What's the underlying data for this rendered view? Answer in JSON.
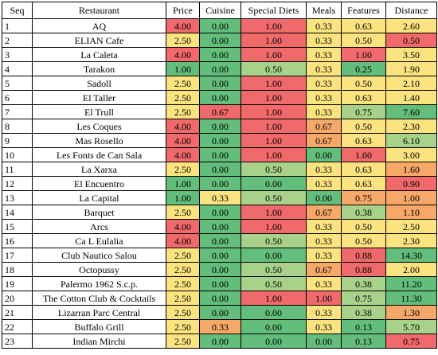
{
  "headers": [
    "Seq",
    "Restaurant",
    "Price",
    "Cuisine",
    "Special Diets",
    "Meals",
    "Features",
    "Distance"
  ],
  "colors": {
    "red": "#f0696b",
    "orange": "#f6a869",
    "yellow": "#fbe480",
    "light_green": "#a8d28a",
    "green": "#63be7b"
  },
  "rows": [
    {
      "seq": "1",
      "name": "AQ",
      "price": "4.00",
      "cuisine": "0.00",
      "diets": "1.00",
      "meals": "0.33",
      "features": "0.63",
      "distance": "2.60",
      "c": [
        "red",
        "green",
        "red",
        "yellow",
        "yellow",
        "yellow"
      ]
    },
    {
      "seq": "2",
      "name": "ELIAN Cafe",
      "price": "2.50",
      "cuisine": "0.00",
      "diets": "1.00",
      "meals": "0.33",
      "features": "0.50",
      "distance": "0.50",
      "c": [
        "yellow",
        "green",
        "red",
        "yellow",
        "yellow",
        "red"
      ]
    },
    {
      "seq": "3",
      "name": "La Caleta",
      "price": "4.00",
      "cuisine": "0.00",
      "diets": "1.00",
      "meals": "0.33",
      "features": "1.00",
      "distance": "3.50",
      "c": [
        "red",
        "green",
        "red",
        "yellow",
        "red",
        "yellow"
      ]
    },
    {
      "seq": "4",
      "name": "Tarakon",
      "price": "1.00",
      "cuisine": "0.00",
      "diets": "0.50",
      "meals": "0.33",
      "features": "0.25",
      "distance": "1.90",
      "c": [
        "green",
        "green",
        "light_green",
        "yellow",
        "green",
        "yellow"
      ]
    },
    {
      "seq": "5",
      "name": "Sadoll",
      "price": "2.50",
      "cuisine": "0.00",
      "diets": "1.00",
      "meals": "0.33",
      "features": "0.50",
      "distance": "2.10",
      "c": [
        "yellow",
        "green",
        "red",
        "yellow",
        "yellow",
        "yellow"
      ]
    },
    {
      "seq": "6",
      "name": "El Taller",
      "price": "2.50",
      "cuisine": "0.00",
      "diets": "1.00",
      "meals": "0.33",
      "features": "0.63",
      "distance": "1.40",
      "c": [
        "yellow",
        "green",
        "red",
        "yellow",
        "yellow",
        "yellow"
      ]
    },
    {
      "seq": "7",
      "name": "El Trull",
      "price": "2.50",
      "cuisine": "0.67",
      "diets": "1.00",
      "meals": "0.33",
      "features": "0.75",
      "distance": "7.60",
      "c": [
        "yellow",
        "red",
        "red",
        "yellow",
        "light_green",
        "green"
      ]
    },
    {
      "seq": "8",
      "name": "Les Coques",
      "price": "4.00",
      "cuisine": "0.00",
      "diets": "1.00",
      "meals": "0.67",
      "features": "0.50",
      "distance": "2.30",
      "c": [
        "red",
        "green",
        "red",
        "orange",
        "yellow",
        "yellow"
      ]
    },
    {
      "seq": "9",
      "name": "Mas Rosello",
      "price": "4.00",
      "cuisine": "0.00",
      "diets": "1.00",
      "meals": "0.67",
      "features": "0.63",
      "distance": "6.10",
      "c": [
        "red",
        "green",
        "red",
        "orange",
        "yellow",
        "light_green"
      ]
    },
    {
      "seq": "10",
      "name": "Les Fonts de Can Sala",
      "price": "4.00",
      "cuisine": "0.00",
      "diets": "1.00",
      "meals": "0.00",
      "features": "1.00",
      "distance": "3.00",
      "c": [
        "red",
        "green",
        "red",
        "green",
        "red",
        "yellow"
      ]
    },
    {
      "seq": "11",
      "name": "La Xarxa",
      "price": "2.50",
      "cuisine": "0.00",
      "diets": "0.50",
      "meals": "0.33",
      "features": "0.63",
      "distance": "1.60",
      "c": [
        "yellow",
        "green",
        "light_green",
        "yellow",
        "yellow",
        "orange"
      ]
    },
    {
      "seq": "12",
      "name": "El Encuentro",
      "price": "1.00",
      "cuisine": "0.00",
      "diets": "0.00",
      "meals": "0.33",
      "features": "0.63",
      "distance": "0.90",
      "c": [
        "green",
        "green",
        "green",
        "yellow",
        "yellow",
        "red"
      ]
    },
    {
      "seq": "13",
      "name": "La Capital",
      "price": "1.00",
      "cuisine": "0.33",
      "diets": "0.50",
      "meals": "0.00",
      "features": "0.75",
      "distance": "1.00",
      "c": [
        "green",
        "yellow",
        "light_green",
        "green",
        "orange",
        "orange"
      ]
    },
    {
      "seq": "14",
      "name": "Barquet",
      "price": "2.50",
      "cuisine": "0.00",
      "diets": "1.00",
      "meals": "0.67",
      "features": "0.38",
      "distance": "1.10",
      "c": [
        "yellow",
        "green",
        "red",
        "orange",
        "light_green",
        "orange"
      ]
    },
    {
      "seq": "15",
      "name": "Arcs",
      "price": "4.00",
      "cuisine": "0.00",
      "diets": "1.00",
      "meals": "0.33",
      "features": "0.50",
      "distance": "2.50",
      "c": [
        "red",
        "green",
        "red",
        "yellow",
        "yellow",
        "yellow"
      ]
    },
    {
      "seq": "16",
      "name": "Ca L Eulalia",
      "price": "4.00",
      "cuisine": "0.00",
      "diets": "0.50",
      "meals": "0.33",
      "features": "0.50",
      "distance": "2.30",
      "c": [
        "red",
        "green",
        "light_green",
        "yellow",
        "yellow",
        "yellow"
      ]
    },
    {
      "seq": "17",
      "name": "Club Nautico Salou",
      "price": "2.50",
      "cuisine": "0.00",
      "diets": "0.00",
      "meals": "0.33",
      "features": "0.88",
      "distance": "14.30",
      "c": [
        "yellow",
        "green",
        "green",
        "yellow",
        "red",
        "green"
      ]
    },
    {
      "seq": "18",
      "name": "Octopussy",
      "price": "2.50",
      "cuisine": "0.00",
      "diets": "0.50",
      "meals": "0.67",
      "features": "0.88",
      "distance": "2.00",
      "c": [
        "yellow",
        "green",
        "light_green",
        "orange",
        "red",
        "yellow"
      ]
    },
    {
      "seq": "19",
      "name": "Palermo 1962 S.c.p.",
      "price": "2.50",
      "cuisine": "0.00",
      "diets": "0.50",
      "meals": "0.33",
      "features": "0.38",
      "distance": "11.20",
      "c": [
        "yellow",
        "green",
        "light_green",
        "yellow",
        "light_green",
        "green"
      ]
    },
    {
      "seq": "20",
      "name": "The Cotton Club & Cocktails",
      "price": "2.50",
      "cuisine": "0.00",
      "diets": "1.00",
      "meals": "1.00",
      "features": "0.75",
      "distance": "11.30",
      "c": [
        "yellow",
        "green",
        "red",
        "red",
        "light_green",
        "green"
      ]
    },
    {
      "seq": "21",
      "name": "Lizarran Parc Central",
      "price": "2.50",
      "cuisine": "0.00",
      "diets": "0.00",
      "meals": "0.33",
      "features": "0.38",
      "distance": "1.30",
      "c": [
        "yellow",
        "green",
        "green",
        "yellow",
        "light_green",
        "orange"
      ]
    },
    {
      "seq": "22",
      "name": "Buffalo Grill",
      "price": "2.50",
      "cuisine": "0.33",
      "diets": "0.00",
      "meals": "0.33",
      "features": "0.13",
      "distance": "5.70",
      "c": [
        "yellow",
        "orange",
        "green",
        "yellow",
        "green",
        "light_green"
      ]
    },
    {
      "seq": "23",
      "name": "Indian Mirchi",
      "price": "2.50",
      "cuisine": "0.00",
      "diets": "0.00",
      "meals": "0.00",
      "features": "0.13",
      "distance": "0.75",
      "c": [
        "yellow",
        "green",
        "green",
        "green",
        "green",
        "red"
      ]
    }
  ]
}
